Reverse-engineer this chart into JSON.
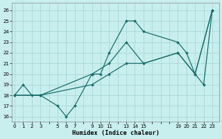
{
  "xlabel": "Humidex (Indice chaleur)",
  "bg_color": "#c8eeee",
  "grid_color": "#a0d4d4",
  "line_color": "#1a6e6a",
  "series": [
    {
      "x": [
        0,
        1,
        2,
        3,
        5,
        6,
        7,
        9,
        10,
        11,
        13,
        14,
        15,
        19,
        20,
        21,
        22,
        23
      ],
      "y": [
        18,
        19,
        18,
        18,
        17,
        16,
        17,
        20,
        20,
        22,
        25,
        25,
        24,
        23,
        22,
        20,
        19,
        26
      ]
    },
    {
      "x": [
        0,
        3,
        9,
        11,
        13,
        15,
        19,
        21,
        23
      ],
      "y": [
        18,
        18,
        20,
        21,
        23,
        21,
        22,
        20,
        26
      ]
    },
    {
      "x": [
        0,
        3,
        9,
        11,
        13,
        15,
        19,
        21,
        23
      ],
      "y": [
        18,
        18,
        19,
        20,
        21,
        21,
        22,
        20,
        26
      ]
    }
  ],
  "xticks": [
    0,
    1,
    2,
    3,
    5,
    6,
    7,
    9,
    10,
    11,
    13,
    14,
    15,
    19,
    20,
    21,
    22,
    23
  ],
  "yticks": [
    16,
    17,
    18,
    19,
    20,
    21,
    22,
    23,
    24,
    25,
    26
  ],
  "xlim": [
    -0.3,
    23.8
  ],
  "ylim": [
    15.5,
    26.7
  ],
  "markersize": 2.0,
  "linewidth": 0.9,
  "tick_fontsize": 5.0,
  "xlabel_fontsize": 6.2
}
